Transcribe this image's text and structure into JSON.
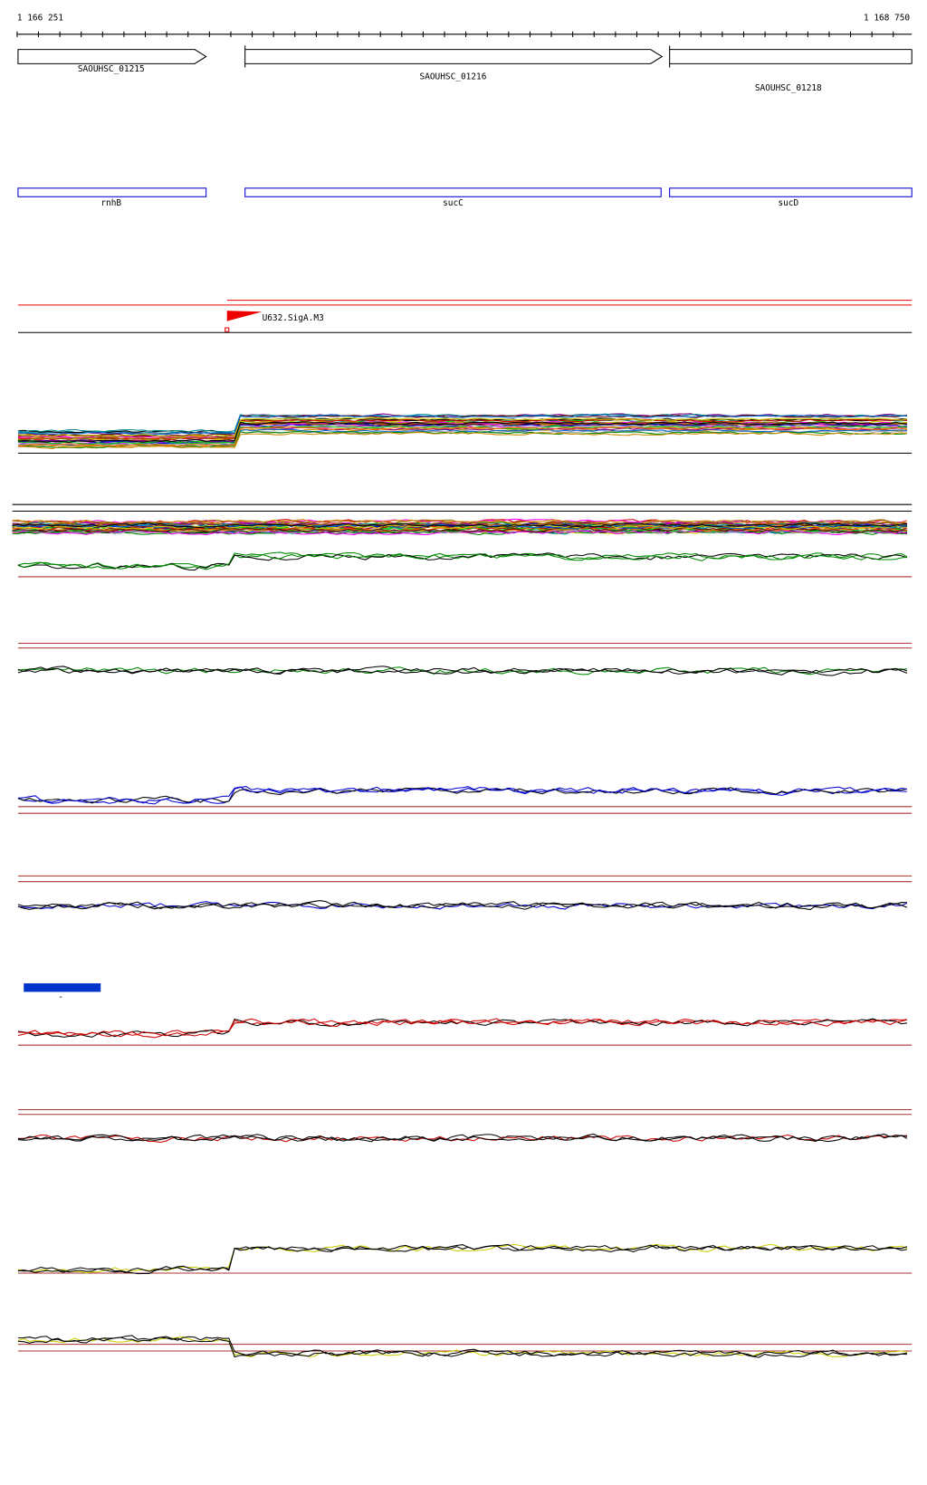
{
  "ruler": {
    "start": "1 166 251",
    "end": "1 168 750"
  },
  "genes": [
    {
      "label": "SAOUHSC_01215"
    },
    {
      "label": "SAOUHSC_01216"
    },
    {
      "label": "SAOUHSC_01218"
    }
  ],
  "features": [
    {
      "label": "rnhB"
    },
    {
      "label": "sucC"
    },
    {
      "label": "sucD"
    }
  ],
  "promoter": {
    "label": "U632.SigA.M3"
  },
  "scale_bar": {
    "label": "-"
  }
}
